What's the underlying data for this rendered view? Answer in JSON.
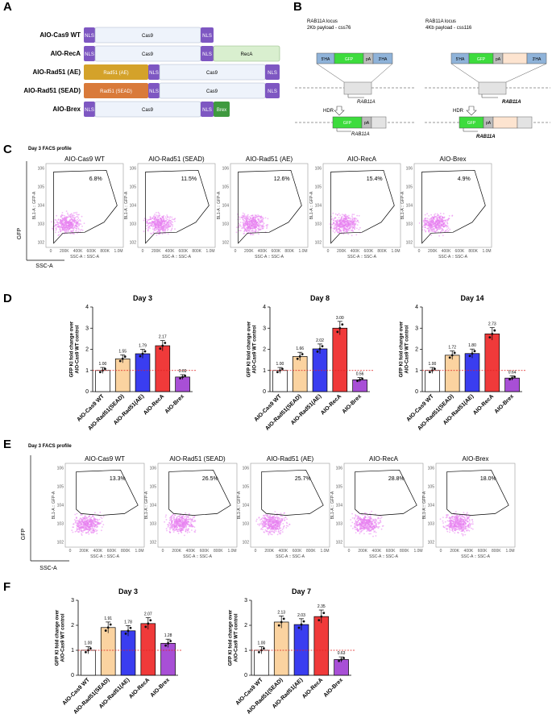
{
  "panel_labels": {
    "a": "A",
    "b": "B",
    "c": "C",
    "d": "D",
    "e": "E",
    "f": "F"
  },
  "panel_a": {
    "constructs": [
      {
        "name": "AIO-Cas9 WT",
        "segments": [
          "NLS",
          "Cas9",
          "NLS"
        ]
      },
      {
        "name": "AIO-RecA",
        "segments": [
          "NLS",
          "Cas9",
          "NLS",
          "RecA"
        ]
      },
      {
        "name": "AIO-Rad51 (AE)",
        "segments": [
          "Rad51 (AE)",
          "NLS",
          "Cas9",
          "NLS"
        ]
      },
      {
        "name": "AIO-Rad51 (SEAD)",
        "segments": [
          "Rad51 (SEAD)",
          "NLS",
          "Cas9",
          "NLS"
        ]
      },
      {
        "name": "AIO-Brex",
        "segments": [
          "NLS",
          "Cas9",
          "NLS",
          "Brex"
        ]
      }
    ],
    "colors": {
      "nls": "#7e57c2",
      "cas9": "#eef3fb",
      "reca": "#d9efcf",
      "rad51_ae": "#d4a22a",
      "rad51_sead": "#d97a3a",
      "brex": "#3f9a3f"
    }
  },
  "panel_b": {
    "left": {
      "title1": "RAB11A locus",
      "title2": "2Kb payload - css76"
    },
    "right": {
      "title1": "RAB11A locus",
      "title2": "4Kb payload - css116"
    },
    "labels": {
      "hdr": "HDR",
      "gene": "RAB11A",
      "lha": "5'HA",
      "rha": "3'HA",
      "gfp": "GFP",
      "pa": "pA"
    }
  },
  "panel_c": {
    "title": "Day 3 FACS profile",
    "ylabel": "GFP",
    "xlabel": "SSC-A",
    "x_axis_label": "SSC-A :: SSC-A",
    "y_axis_label": "BL1-A :: GFP-A",
    "x_ticks": [
      "0",
      "200K",
      "400K",
      "600K",
      "800K",
      "1.0M"
    ],
    "y_ticks": [
      "10^2",
      "10^3",
      "10^4",
      "10^5",
      "10^6"
    ],
    "plots": [
      {
        "name": "AIO-Cas9 WT",
        "pct": "6.8%"
      },
      {
        "name": "AIO-Rad51 (SEAD)",
        "pct": "11.5%"
      },
      {
        "name": "AIO-Rad51 (AE)",
        "pct": "12.6%"
      },
      {
        "name": "AIO-RecA",
        "pct": "15.4%"
      },
      {
        "name": "AIO-Brex",
        "pct": "4.9%"
      }
    ]
  },
  "panel_e": {
    "title": "Day 3 FACS profile",
    "ylabel": "GFP",
    "xlabel": "SSC-A",
    "x_axis_label": "SSC-A :: SSC-A",
    "y_axis_label": "BL1-A :: GFP-A",
    "x_ticks": [
      "0",
      "200K",
      "400K",
      "600K",
      "800K",
      "1.0M"
    ],
    "y_ticks": [
      "10^2",
      "10^3",
      "10^4",
      "10^5",
      "10^6"
    ],
    "plots": [
      {
        "name": "AIO-Cas9 WT",
        "pct": "13.3%"
      },
      {
        "name": "AIO-Rad51 (SEAD)",
        "pct": "26.5%"
      },
      {
        "name": "AIO-Rad51 (AE)",
        "pct": "25.7%"
      },
      {
        "name": "AIO-RecA",
        "pct": "28.8%"
      },
      {
        "name": "AIO-Brex",
        "pct": "18.0%"
      }
    ]
  },
  "chart_data": [
    {
      "type": "bar",
      "panel": "D",
      "title": "Day 3",
      "categories": [
        "AIO-Cas9 WT",
        "AIO-Rad51(SEAD)",
        "AIO-Rad51(AE)",
        "AIO-RecA",
        "AIO-Brex"
      ],
      "values": [
        1.0,
        1.55,
        1.79,
        2.17,
        0.69
      ],
      "labels": [
        "1.00",
        "1.55",
        "1.79",
        "2.17",
        "0.69"
      ],
      "ylabel": "GFP KI fold change over AIO-Cas9 WT control",
      "ylim": [
        0,
        4
      ],
      "yticks": [
        "0",
        "1",
        "2",
        "3",
        "4"
      ],
      "colors": [
        "#ffffff",
        "#fbd3a0",
        "#3a3df0",
        "#f03a3a",
        "#a84fd6"
      ],
      "reference_line": 1
    },
    {
      "type": "bar",
      "panel": "D",
      "title": "Day 8",
      "categories": [
        "AIO-Cas9 WT",
        "AIO-Rad51(SEAD)",
        "AIO-Rad51(AE)",
        "AIO-RecA",
        "AIO-Brex"
      ],
      "values": [
        1.0,
        1.66,
        2.02,
        3.0,
        0.56
      ],
      "labels": [
        "1.00",
        "1.66",
        "2.02",
        "3.00",
        "0.56"
      ],
      "ylabel": "GFP KI fold change over AIO-Cas9 WT control",
      "ylim": [
        0,
        4
      ],
      "yticks": [
        "0",
        "1",
        "2",
        "3",
        "4"
      ],
      "colors": [
        "#ffffff",
        "#fbd3a0",
        "#3a3df0",
        "#f03a3a",
        "#a84fd6"
      ],
      "reference_line": 1
    },
    {
      "type": "bar",
      "panel": "D",
      "title": "Day 14",
      "categories": [
        "AIO-Cas9 WT",
        "AIO-Rad51(SEAD)",
        "AIO-Rad51(AE)",
        "AIO-RecA",
        "AIO-Brex"
      ],
      "values": [
        1.0,
        1.72,
        1.8,
        2.73,
        0.64
      ],
      "labels": [
        "1.00",
        "1.72",
        "1.80",
        "2.73",
        "0.64"
      ],
      "ylabel": "GFP KI fold change over AIO-Cas9 WT control",
      "ylim": [
        0,
        4
      ],
      "yticks": [
        "0",
        "1",
        "2",
        "3",
        "4"
      ],
      "colors": [
        "#ffffff",
        "#fbd3a0",
        "#3a3df0",
        "#f03a3a",
        "#a84fd6"
      ],
      "reference_line": 1
    },
    {
      "type": "bar",
      "panel": "F",
      "title": "Day 3",
      "categories": [
        "AIO-Cas9 WT",
        "AIO-Rad51(SEAD)",
        "AIO-Rad51(AE)",
        "AIO-RecA",
        "AIO-Brex"
      ],
      "values": [
        1.0,
        1.91,
        1.78,
        2.07,
        1.28
      ],
      "labels": [
        "1.00",
        "1.91",
        "1.78",
        "2.07",
        "1.28"
      ],
      "ylabel": "GFP KI fold change over AIO-Cas9 WT control",
      "ylim": [
        0,
        3
      ],
      "yticks": [
        "0",
        "1",
        "2",
        "3"
      ],
      "colors": [
        "#ffffff",
        "#fbd3a0",
        "#3a3df0",
        "#f03a3a",
        "#a84fd6"
      ],
      "reference_line": 1
    },
    {
      "type": "bar",
      "panel": "F",
      "title": "Day 7",
      "categories": [
        "AIO-Cas9 WT",
        "AIO-Rad51(SEAD)",
        "AIO-Rad51(AE)",
        "AIO-RecA",
        "AIO-Brex"
      ],
      "values": [
        1.0,
        2.13,
        2.03,
        2.35,
        0.63
      ],
      "labels": [
        "1.00",
        "2.13",
        "2.03",
        "2.35",
        "0.63"
      ],
      "ylabel": "GFP KI fold change over AIO-Cas9 WT control",
      "ylim": [
        0,
        3
      ],
      "yticks": [
        "0",
        "1",
        "2",
        "3"
      ],
      "colors": [
        "#ffffff",
        "#fbd3a0",
        "#3a3df0",
        "#f03a3a",
        "#a84fd6"
      ],
      "reference_line": 1
    }
  ]
}
